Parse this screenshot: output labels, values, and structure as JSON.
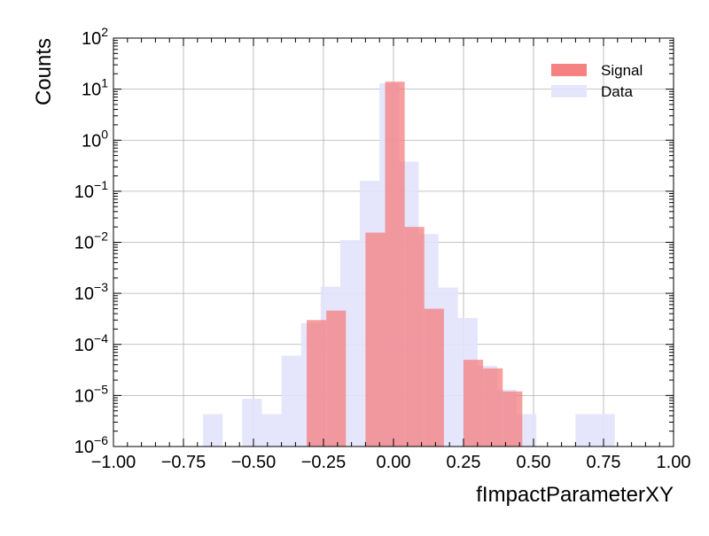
{
  "chart_data": {
    "type": "bar",
    "xlabel": "fImpactParameterXY",
    "ylabel": "Counts",
    "xlim": [
      -1.0,
      1.0
    ],
    "ylim": [
      1e-06,
      100
    ],
    "yscale": "log",
    "grid": true,
    "legend_position": "top-right",
    "x_ticks": [
      -1.0,
      -0.75,
      -0.5,
      -0.25,
      0.0,
      0.25,
      0.5,
      0.75,
      1.0
    ],
    "x_tick_labels": [
      "−1.00",
      "−0.75",
      "−0.50",
      "−0.25",
      "0.00",
      "0.25",
      "0.50",
      "0.75",
      "1.00"
    ],
    "y_ticks": [
      {
        "value": 1e-06,
        "base": "10",
        "exp": "−6"
      },
      {
        "value": 1e-05,
        "base": "10",
        "exp": "−5"
      },
      {
        "value": 0.0001,
        "base": "10",
        "exp": "−4"
      },
      {
        "value": 0.001,
        "base": "10",
        "exp": "−3"
      },
      {
        "value": 0.01,
        "base": "10",
        "exp": "−2"
      },
      {
        "value": 0.1,
        "base": "10",
        "exp": "−1"
      },
      {
        "value": 1,
        "base": "10",
        "exp": "0"
      },
      {
        "value": 10,
        "base": "10",
        "exp": "1"
      },
      {
        "value": 100,
        "base": "10",
        "exp": "2"
      }
    ],
    "series": [
      {
        "name": "Data",
        "color": "#e2e2fb",
        "bins": [
          {
            "x0": -0.68,
            "x1": -0.61,
            "y": 4.3e-06
          },
          {
            "x0": -0.54,
            "x1": -0.47,
            "y": 8.6e-06
          },
          {
            "x0": -0.47,
            "x1": -0.4,
            "y": 4.3e-06
          },
          {
            "x0": -0.4,
            "x1": -0.33,
            "y": 6e-05
          },
          {
            "x0": -0.33,
            "x1": -0.26,
            "y": 0.00026
          },
          {
            "x0": -0.26,
            "x1": -0.19,
            "y": 0.00135
          },
          {
            "x0": -0.19,
            "x1": -0.12,
            "y": 0.011
          },
          {
            "x0": -0.12,
            "x1": -0.05,
            "y": 0.16
          },
          {
            "x0": -0.05,
            "x1": 0.02,
            "y": 13
          },
          {
            "x0": 0.02,
            "x1": 0.09,
            "y": 0.38
          },
          {
            "x0": 0.09,
            "x1": 0.16,
            "y": 0.0145
          },
          {
            "x0": 0.16,
            "x1": 0.23,
            "y": 0.0013
          },
          {
            "x0": 0.23,
            "x1": 0.3,
            "y": 0.00033
          },
          {
            "x0": 0.3,
            "x1": 0.37,
            "y": 3.8e-05
          },
          {
            "x0": 0.37,
            "x1": 0.44,
            "y": 1.3e-05
          },
          {
            "x0": 0.44,
            "x1": 0.51,
            "y": 4.3e-06
          },
          {
            "x0": 0.65,
            "x1": 0.72,
            "y": 4.3e-06
          },
          {
            "x0": 0.72,
            "x1": 0.79,
            "y": 4.3e-06
          }
        ]
      },
      {
        "name": "Signal",
        "color": "#f47a7a",
        "bins": [
          {
            "x0": -0.31,
            "x1": -0.24,
            "y": 0.0003
          },
          {
            "x0": -0.24,
            "x1": -0.17,
            "y": 0.00046
          },
          {
            "x0": -0.1,
            "x1": -0.03,
            "y": 0.0155
          },
          {
            "x0": -0.03,
            "x1": 0.04,
            "y": 14
          },
          {
            "x0": 0.04,
            "x1": 0.11,
            "y": 0.02
          },
          {
            "x0": 0.11,
            "x1": 0.18,
            "y": 0.0005
          },
          {
            "x0": 0.25,
            "x1": 0.32,
            "y": 5e-05
          },
          {
            "x0": 0.32,
            "x1": 0.39,
            "y": 3.4e-05
          },
          {
            "x0": 0.39,
            "x1": 0.46,
            "y": 1.2e-05
          }
        ]
      }
    ]
  }
}
